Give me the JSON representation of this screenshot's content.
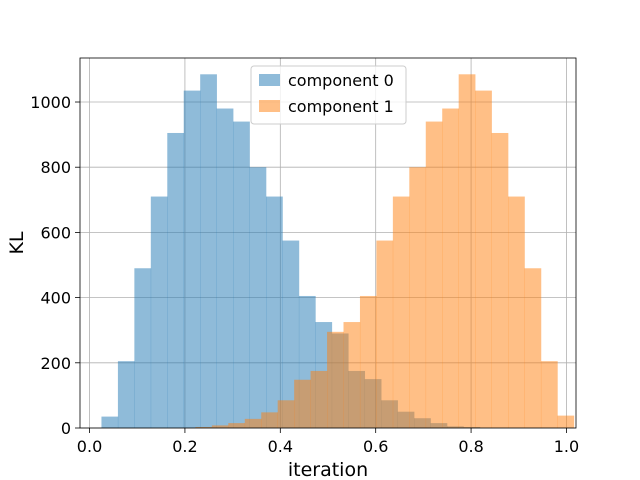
{
  "chart_data": {
    "type": "bar",
    "xlabel": "iteration",
    "ylabel": "KL",
    "xlim": [
      -0.02,
      1.02
    ],
    "ylim": [
      0,
      1135
    ],
    "xticks": [
      "0.0",
      "0.2",
      "0.4",
      "0.6",
      "0.8",
      "1.0"
    ],
    "yticks": [
      "0",
      "200",
      "400",
      "600",
      "800",
      "1000"
    ],
    "grid": true,
    "legend_position": "top-center",
    "bin_width": 0.0345,
    "series": [
      {
        "name": "component 0",
        "color": "#1f77b4",
        "opacity": 0.5,
        "bins": [
          {
            "x": 0.025,
            "y": 35
          },
          {
            "x": 0.0595,
            "y": 205
          },
          {
            "x": 0.094,
            "y": 490
          },
          {
            "x": 0.1285,
            "y": 710
          },
          {
            "x": 0.163,
            "y": 905
          },
          {
            "x": 0.1975,
            "y": 1035
          },
          {
            "x": 0.232,
            "y": 1085
          },
          {
            "x": 0.2665,
            "y": 980
          },
          {
            "x": 0.301,
            "y": 940
          },
          {
            "x": 0.3355,
            "y": 800
          },
          {
            "x": 0.37,
            "y": 710
          },
          {
            "x": 0.4045,
            "y": 575
          },
          {
            "x": 0.439,
            "y": 405
          },
          {
            "x": 0.4735,
            "y": 325
          },
          {
            "x": 0.508,
            "y": 290
          },
          {
            "x": 0.5425,
            "y": 175
          },
          {
            "x": 0.577,
            "y": 150
          },
          {
            "x": 0.6115,
            "y": 85
          },
          {
            "x": 0.646,
            "y": 50
          },
          {
            "x": 0.6805,
            "y": 30
          },
          {
            "x": 0.715,
            "y": 15
          },
          {
            "x": 0.7495,
            "y": 5
          },
          {
            "x": 0.784,
            "y": 3
          }
        ]
      },
      {
        "name": "component 1",
        "color": "#ff7f0e",
        "opacity": 0.5,
        "bins": [
          {
            "x": 0.222,
            "y": 3
          },
          {
            "x": 0.2565,
            "y": 8
          },
          {
            "x": 0.291,
            "y": 15
          },
          {
            "x": 0.3255,
            "y": 28
          },
          {
            "x": 0.36,
            "y": 48
          },
          {
            "x": 0.3945,
            "y": 85
          },
          {
            "x": 0.429,
            "y": 148
          },
          {
            "x": 0.4635,
            "y": 175
          },
          {
            "x": 0.498,
            "y": 295
          },
          {
            "x": 0.5325,
            "y": 325
          },
          {
            "x": 0.567,
            "y": 405
          },
          {
            "x": 0.6015,
            "y": 575
          },
          {
            "x": 0.636,
            "y": 710
          },
          {
            "x": 0.6705,
            "y": 800
          },
          {
            "x": 0.705,
            "y": 940
          },
          {
            "x": 0.7395,
            "y": 980
          },
          {
            "x": 0.774,
            "y": 1085
          },
          {
            "x": 0.8085,
            "y": 1035
          },
          {
            "x": 0.843,
            "y": 905
          },
          {
            "x": 0.8775,
            "y": 710
          },
          {
            "x": 0.912,
            "y": 490
          },
          {
            "x": 0.9465,
            "y": 205
          },
          {
            "x": 0.981,
            "y": 38
          }
        ]
      }
    ]
  }
}
